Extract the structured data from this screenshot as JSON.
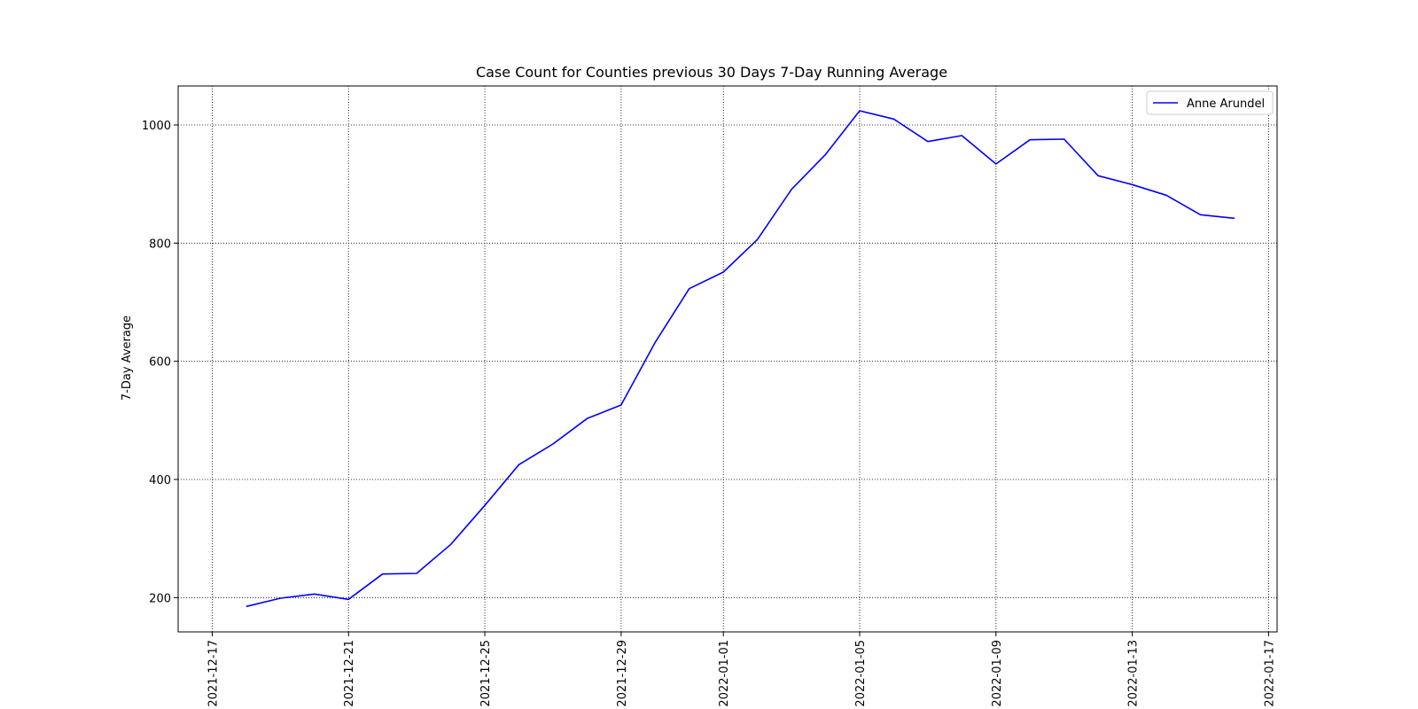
{
  "chart_data": {
    "type": "line",
    "title": "Case Count for Counties previous 30 Days 7-Day Running Average",
    "xlabel": "",
    "ylabel": "7-Day Average",
    "xlim": [
      "2021-12-16T00:00",
      "2022-01-17T06:00"
    ],
    "ylim": [
      142,
      1066
    ],
    "grid": true,
    "grid_style": "dotted",
    "legend_position": "top-right",
    "x_ticks": [
      "2021-12-17",
      "2021-12-21",
      "2021-12-25",
      "2021-12-29",
      "2022-01-01",
      "2022-01-05",
      "2022-01-09",
      "2022-01-13",
      "2022-01-17"
    ],
    "y_ticks": [
      200,
      400,
      600,
      800,
      1000
    ],
    "series": [
      {
        "name": "Anne Arundel",
        "color": "#0000ff",
        "x": [
          "2021-12-18",
          "2021-12-19",
          "2021-12-20",
          "2021-12-21",
          "2021-12-22",
          "2021-12-23",
          "2021-12-24",
          "2021-12-25",
          "2021-12-26",
          "2021-12-27",
          "2021-12-28",
          "2021-12-29",
          "2021-12-30",
          "2021-12-31",
          "2022-01-01",
          "2022-01-02",
          "2022-01-03",
          "2022-01-04",
          "2022-01-05",
          "2022-01-06",
          "2022-01-07",
          "2022-01-08",
          "2022-01-09",
          "2022-01-10",
          "2022-01-11",
          "2022-01-12",
          "2022-01-13",
          "2022-01-14",
          "2022-01-15",
          "2022-01-16"
        ],
        "values": [
          185,
          199,
          206,
          197,
          240,
          241,
          290,
          356,
          425,
          460,
          503,
          526,
          632,
          723,
          751,
          806,
          891,
          950,
          1024,
          1010,
          972,
          982,
          934,
          975,
          976,
          914,
          899,
          881,
          848,
          842
        ]
      }
    ]
  }
}
